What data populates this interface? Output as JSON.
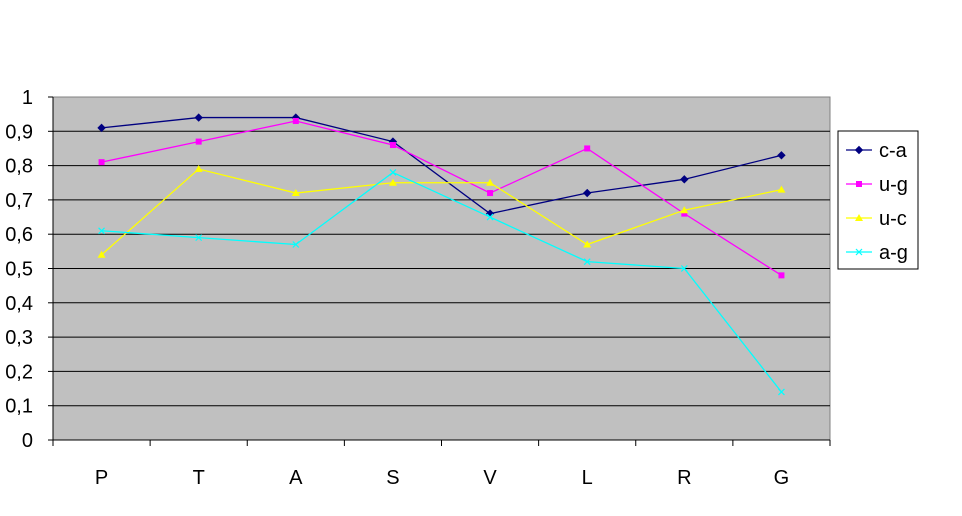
{
  "chart_data": {
    "type": "line",
    "categories": [
      "P",
      "T",
      "A",
      "S",
      "V",
      "L",
      "R",
      "G"
    ],
    "ylim": [
      0,
      1
    ],
    "ytick_labels": [
      "0",
      "0,1",
      "0,2",
      "0,3",
      "0,4",
      "0,5",
      "0,6",
      "0,7",
      "0,8",
      "0,9",
      "1"
    ],
    "grid": true,
    "legend_position": "right",
    "plot_background": "#c0c0c0",
    "series": [
      {
        "name": "c-a",
        "color": "#000080",
        "marker": "diamond",
        "values": [
          0.91,
          0.94,
          0.94,
          0.87,
          0.66,
          0.72,
          0.76,
          0.83
        ]
      },
      {
        "name": "u-g",
        "color": "#ff00ff",
        "marker": "square",
        "values": [
          0.81,
          0.87,
          0.93,
          0.86,
          0.72,
          0.85,
          0.66,
          0.48
        ]
      },
      {
        "name": "u-c",
        "color": "#ffff00",
        "marker": "triangle",
        "values": [
          0.54,
          0.79,
          0.72,
          0.75,
          0.75,
          0.57,
          0.67,
          0.73
        ]
      },
      {
        "name": "a-g",
        "color": "#00ffff",
        "marker": "x",
        "values": [
          0.61,
          0.59,
          0.57,
          0.78,
          0.65,
          0.52,
          0.5,
          0.14
        ]
      }
    ]
  }
}
